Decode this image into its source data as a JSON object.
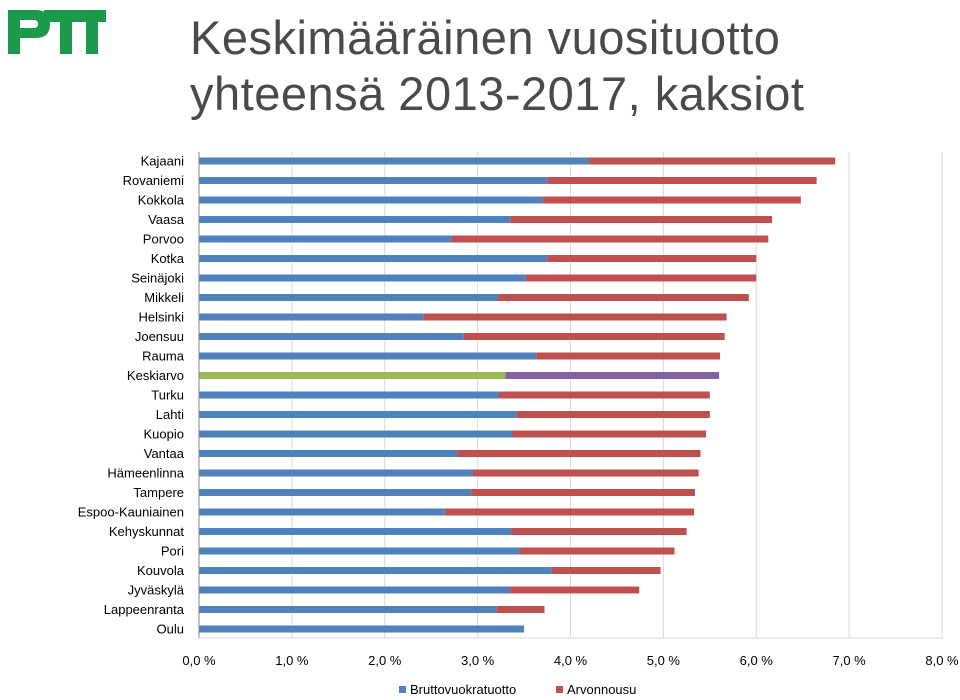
{
  "logo": {
    "text": "PTT",
    "color": "#1a9a4a"
  },
  "title": {
    "line1": "Keskimääräinen vuosituotto",
    "line2": "yhteensä 2013-2017, kaksiot"
  },
  "colors": {
    "bruttovuokratuotto": "#4f81bd",
    "arvonnousu": "#c0504d",
    "keskiarvo_bruttovuokratuotto": "#9bbb59",
    "keskiarvo_arvonnousu": "#8064a2"
  },
  "chart_data": {
    "type": "bar",
    "orientation": "horizontal",
    "stacked": true,
    "title": "Keskimääräinen vuosituotto yhteensä 2013-2017, kaksiot",
    "categories": [
      "Kajaani",
      "Rovaniemi",
      "Kokkola",
      "Vaasa",
      "Porvoo",
      "Kotka",
      "Seinäjoki",
      "Mikkeli",
      "Helsinki",
      "Joensuu",
      "Rauma",
      "Keskiarvo",
      "Turku",
      "Lahti",
      "Kuopio",
      "Vantaa",
      "Hämeenlinna",
      "Tampere",
      "Espoo-Kauniainen",
      "Kehyskunnat",
      "Pori",
      "Kouvola",
      "Jyväskylä",
      "Lappeenranta",
      "Oulu"
    ],
    "series": [
      {
        "name": "Bruttovuokratuotto",
        "values": [
          4.2,
          3.75,
          3.7,
          3.35,
          2.72,
          3.75,
          3.52,
          3.22,
          2.42,
          2.85,
          3.63,
          3.3,
          3.23,
          3.42,
          3.37,
          2.78,
          2.95,
          2.93,
          2.65,
          3.36,
          3.45,
          3.8,
          3.35,
          3.2,
          3.5
        ]
      },
      {
        "name": "Arvonnousu",
        "values": [
          2.65,
          2.9,
          2.78,
          2.82,
          3.41,
          2.25,
          2.48,
          2.7,
          3.26,
          2.81,
          1.98,
          2.3,
          2.27,
          2.08,
          2.09,
          2.62,
          2.43,
          2.41,
          2.68,
          1.89,
          1.67,
          1.17,
          1.39,
          0.52,
          0.0
        ]
      }
    ],
    "xlim": [
      0,
      8
    ],
    "xticks": [
      "0,0 %",
      "1,0 %",
      "2,0 %",
      "3,0 %",
      "4,0 %",
      "5,0 %",
      "6,0 %",
      "7,0 %",
      "8,0 %"
    ],
    "xlabel": "",
    "ylabel": "",
    "grid": "vertical",
    "legend": "bottom",
    "highlight_category": "Keskiarvo"
  }
}
